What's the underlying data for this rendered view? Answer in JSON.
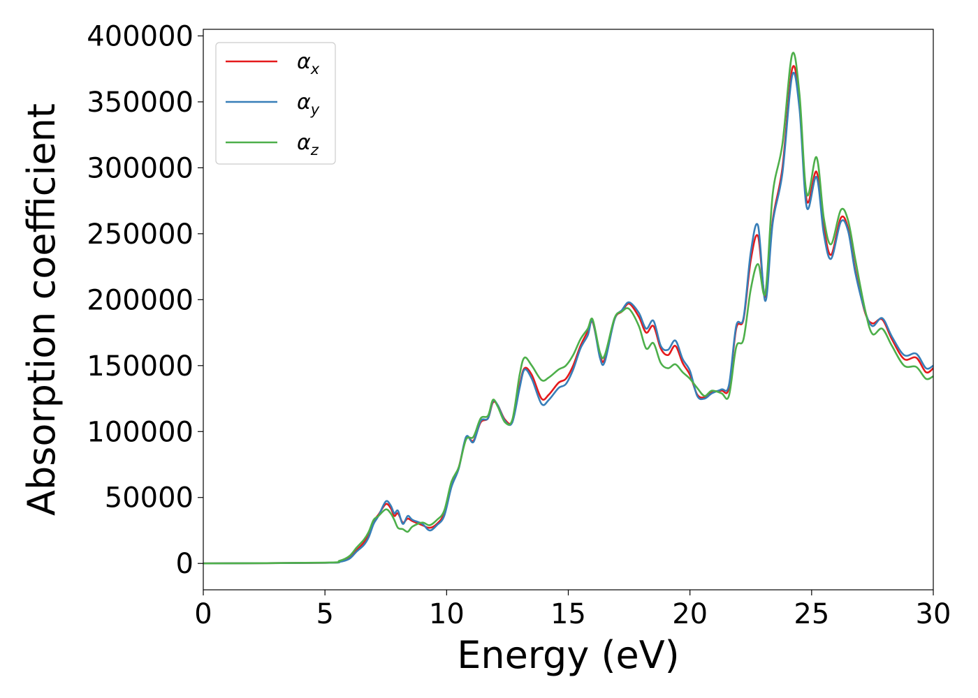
{
  "chart_data": {
    "type": "line",
    "xlabel": "Energy (eV)",
    "ylabel": "Absorption coefficient",
    "xlim": [
      0,
      30
    ],
    "ylim": [
      -20000,
      405000
    ],
    "x_ticks": [
      0,
      5,
      10,
      15,
      20,
      25,
      30
    ],
    "x_tick_labels": [
      "0",
      "5",
      "10",
      "15",
      "20",
      "25",
      "30"
    ],
    "y_ticks": [
      0,
      50000,
      100000,
      150000,
      200000,
      250000,
      300000,
      350000,
      400000
    ],
    "y_tick_labels": [
      "0",
      "50000",
      "100000",
      "150000",
      "200000",
      "250000",
      "300000",
      "350000",
      "400000"
    ],
    "grid": false,
    "legend_position": "top-left",
    "series": [
      {
        "name": "αx",
        "symbol": "α",
        "subscript": "x",
        "color": "#e41a1c",
        "points": [
          [
            0,
            0
          ],
          [
            5,
            500
          ],
          [
            5.6,
            1500
          ],
          [
            6,
            4000
          ],
          [
            6.3,
            10000
          ],
          [
            6.6,
            16000
          ],
          [
            6.8,
            22000
          ],
          [
            7,
            32000
          ],
          [
            7.2,
            37000
          ],
          [
            7.5,
            45000
          ],
          [
            7.7,
            42000
          ],
          [
            7.85,
            36000
          ],
          [
            8,
            38000
          ],
          [
            8.2,
            31000
          ],
          [
            8.4,
            34000
          ],
          [
            8.6,
            32000
          ],
          [
            9,
            29000
          ],
          [
            9.3,
            27000
          ],
          [
            9.6,
            30000
          ],
          [
            9.9,
            38000
          ],
          [
            10.2,
            60000
          ],
          [
            10.5,
            73000
          ],
          [
            10.8,
            95000
          ],
          [
            11.1,
            93000
          ],
          [
            11.4,
            107000
          ],
          [
            11.7,
            110000
          ],
          [
            11.9,
            122000
          ],
          [
            12.1,
            120000
          ],
          [
            12.4,
            109000
          ],
          [
            12.7,
            108000
          ],
          [
            13,
            135000
          ],
          [
            13.2,
            148000
          ],
          [
            13.5,
            143000
          ],
          [
            13.9,
            125000
          ],
          [
            14.2,
            128000
          ],
          [
            14.6,
            137000
          ],
          [
            14.9,
            140000
          ],
          [
            15.2,
            150000
          ],
          [
            15.5,
            165000
          ],
          [
            15.8,
            176000
          ],
          [
            16,
            183000
          ],
          [
            16.3,
            158000
          ],
          [
            16.5,
            155000
          ],
          [
            16.9,
            185000
          ],
          [
            17.2,
            191000
          ],
          [
            17.5,
            197000
          ],
          [
            17.9,
            187000
          ],
          [
            18.2,
            175000
          ],
          [
            18.5,
            180000
          ],
          [
            18.8,
            163000
          ],
          [
            19.1,
            158000
          ],
          [
            19.4,
            165000
          ],
          [
            19.7,
            152000
          ],
          [
            20,
            143000
          ],
          [
            20.3,
            128000
          ],
          [
            20.6,
            126000
          ],
          [
            20.9,
            130000
          ],
          [
            21.3,
            131000
          ],
          [
            21.6,
            133000
          ],
          [
            21.9,
            178000
          ],
          [
            22.2,
            185000
          ],
          [
            22.5,
            230000
          ],
          [
            22.8,
            248000
          ],
          [
            23.1,
            202000
          ],
          [
            23.4,
            260000
          ],
          [
            23.8,
            300000
          ],
          [
            24.2,
            375000
          ],
          [
            24.5,
            350000
          ],
          [
            24.8,
            275000
          ],
          [
            25.2,
            297000
          ],
          [
            25.5,
            255000
          ],
          [
            25.8,
            234000
          ],
          [
            26.2,
            262000
          ],
          [
            26.5,
            254000
          ],
          [
            26.8,
            222000
          ],
          [
            27.2,
            190000
          ],
          [
            27.5,
            182000
          ],
          [
            27.9,
            185000
          ],
          [
            28.3,
            170000
          ],
          [
            28.8,
            155000
          ],
          [
            29.3,
            156000
          ],
          [
            29.7,
            145000
          ],
          [
            30,
            148000
          ]
        ]
      },
      {
        "name": "αy",
        "symbol": "α",
        "subscript": "y",
        "color": "#377eb8",
        "points": [
          [
            0,
            0
          ],
          [
            5,
            500
          ],
          [
            5.6,
            1200
          ],
          [
            6,
            3500
          ],
          [
            6.3,
            9000
          ],
          [
            6.6,
            14000
          ],
          [
            6.8,
            20000
          ],
          [
            7,
            30000
          ],
          [
            7.2,
            36000
          ],
          [
            7.5,
            47000
          ],
          [
            7.7,
            44000
          ],
          [
            7.85,
            38000
          ],
          [
            8,
            40000
          ],
          [
            8.2,
            30000
          ],
          [
            8.4,
            36000
          ],
          [
            8.6,
            33000
          ],
          [
            9,
            30000
          ],
          [
            9.3,
            25000
          ],
          [
            9.6,
            29000
          ],
          [
            9.9,
            36000
          ],
          [
            10.2,
            58000
          ],
          [
            10.5,
            72000
          ],
          [
            10.8,
            96000
          ],
          [
            11.1,
            92000
          ],
          [
            11.4,
            108000
          ],
          [
            11.7,
            110000
          ],
          [
            11.9,
            123000
          ],
          [
            12.1,
            120000
          ],
          [
            12.4,
            108000
          ],
          [
            12.7,
            107000
          ],
          [
            13,
            133000
          ],
          [
            13.2,
            147000
          ],
          [
            13.5,
            140000
          ],
          [
            13.9,
            121000
          ],
          [
            14.2,
            124000
          ],
          [
            14.6,
            133000
          ],
          [
            14.9,
            136000
          ],
          [
            15.2,
            147000
          ],
          [
            15.5,
            163000
          ],
          [
            15.8,
            173000
          ],
          [
            16,
            184000
          ],
          [
            16.3,
            156000
          ],
          [
            16.5,
            153000
          ],
          [
            16.9,
            185000
          ],
          [
            17.2,
            192000
          ],
          [
            17.5,
            198000
          ],
          [
            17.9,
            190000
          ],
          [
            18.2,
            178000
          ],
          [
            18.5,
            184000
          ],
          [
            18.8,
            165000
          ],
          [
            19.1,
            162000
          ],
          [
            19.4,
            169000
          ],
          [
            19.7,
            155000
          ],
          [
            20,
            146000
          ],
          [
            20.3,
            127000
          ],
          [
            20.6,
            125000
          ],
          [
            20.9,
            129000
          ],
          [
            21.3,
            132000
          ],
          [
            21.6,
            135000
          ],
          [
            21.9,
            180000
          ],
          [
            22.2,
            186000
          ],
          [
            22.5,
            236000
          ],
          [
            22.8,
            256000
          ],
          [
            23.1,
            199000
          ],
          [
            23.4,
            258000
          ],
          [
            23.8,
            296000
          ],
          [
            24.2,
            370000
          ],
          [
            24.5,
            345000
          ],
          [
            24.8,
            270000
          ],
          [
            25.2,
            293000
          ],
          [
            25.5,
            250000
          ],
          [
            25.8,
            231000
          ],
          [
            26.2,
            259000
          ],
          [
            26.5,
            252000
          ],
          [
            26.8,
            220000
          ],
          [
            27.2,
            191000
          ],
          [
            27.5,
            180000
          ],
          [
            27.9,
            186000
          ],
          [
            28.3,
            172000
          ],
          [
            28.8,
            158000
          ],
          [
            29.3,
            159000
          ],
          [
            29.7,
            148000
          ],
          [
            30,
            150000
          ]
        ]
      },
      {
        "name": "αz",
        "symbol": "α",
        "subscript": "z",
        "color": "#4daf4a",
        "points": [
          [
            0,
            0
          ],
          [
            5,
            600
          ],
          [
            5.6,
            2000
          ],
          [
            6,
            5500
          ],
          [
            6.3,
            12000
          ],
          [
            6.6,
            18000
          ],
          [
            6.8,
            24000
          ],
          [
            7,
            33000
          ],
          [
            7.2,
            36000
          ],
          [
            7.5,
            41000
          ],
          [
            7.7,
            38000
          ],
          [
            7.85,
            33000
          ],
          [
            8,
            27000
          ],
          [
            8.2,
            26000
          ],
          [
            8.4,
            24000
          ],
          [
            8.6,
            28000
          ],
          [
            9,
            31000
          ],
          [
            9.3,
            29000
          ],
          [
            9.6,
            33000
          ],
          [
            9.9,
            40000
          ],
          [
            10.2,
            62000
          ],
          [
            10.5,
            73000
          ],
          [
            10.8,
            94000
          ],
          [
            11.1,
            96000
          ],
          [
            11.4,
            110000
          ],
          [
            11.7,
            112000
          ],
          [
            11.9,
            124000
          ],
          [
            12.1,
            119000
          ],
          [
            12.4,
            107000
          ],
          [
            12.7,
            109000
          ],
          [
            13,
            143000
          ],
          [
            13.2,
            156000
          ],
          [
            13.5,
            150000
          ],
          [
            13.9,
            139000
          ],
          [
            14.2,
            141000
          ],
          [
            14.6,
            147000
          ],
          [
            14.9,
            150000
          ],
          [
            15.2,
            158000
          ],
          [
            15.5,
            170000
          ],
          [
            15.8,
            178000
          ],
          [
            16,
            185000
          ],
          [
            16.3,
            160000
          ],
          [
            16.5,
            158000
          ],
          [
            16.9,
            186000
          ],
          [
            17.2,
            191000
          ],
          [
            17.5,
            193000
          ],
          [
            17.9,
            180000
          ],
          [
            18.2,
            163000
          ],
          [
            18.5,
            167000
          ],
          [
            18.8,
            152000
          ],
          [
            19.1,
            148000
          ],
          [
            19.4,
            151000
          ],
          [
            19.7,
            145000
          ],
          [
            20,
            140000
          ],
          [
            20.3,
            133000
          ],
          [
            20.6,
            127000
          ],
          [
            20.9,
            131000
          ],
          [
            21.3,
            129000
          ],
          [
            21.6,
            127000
          ],
          [
            21.9,
            164000
          ],
          [
            22.2,
            170000
          ],
          [
            22.5,
            208000
          ],
          [
            22.8,
            227000
          ],
          [
            23.1,
            205000
          ],
          [
            23.4,
            280000
          ],
          [
            23.8,
            318000
          ],
          [
            24.2,
            386000
          ],
          [
            24.5,
            356000
          ],
          [
            24.8,
            280000
          ],
          [
            25.2,
            308000
          ],
          [
            25.5,
            262000
          ],
          [
            25.8,
            242000
          ],
          [
            26.2,
            268000
          ],
          [
            26.5,
            260000
          ],
          [
            26.8,
            230000
          ],
          [
            27.2,
            192000
          ],
          [
            27.5,
            174000
          ],
          [
            27.9,
            178000
          ],
          [
            28.3,
            165000
          ],
          [
            28.8,
            150000
          ],
          [
            29.3,
            149000
          ],
          [
            29.7,
            140000
          ],
          [
            30,
            142000
          ]
        ]
      }
    ]
  }
}
